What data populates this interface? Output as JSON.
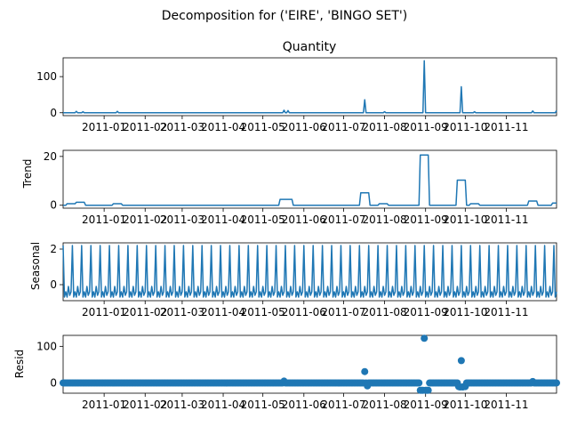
{
  "figure": {
    "title": "Decomposition for ('EIRE', 'BINGO SET')"
  },
  "colors": {
    "series": "#1f77b4",
    "axis": "#000000",
    "background": "#ffffff"
  },
  "chart_data": [
    {
      "type": "line",
      "panel": "observed",
      "title": "Quantity",
      "ylabel": "",
      "ylim": [
        -8,
        152
      ],
      "yticks": [
        0,
        100
      ],
      "xticklabels": [
        "2011-01",
        "2011-02",
        "2011-03",
        "2011-04",
        "2011-05",
        "2011-06",
        "2011-07",
        "2011-08",
        "2011-09",
        "2011-10",
        "2011-11"
      ],
      "x_range": [
        "2010-12-01",
        "2011-12-09"
      ],
      "baseline": 0,
      "spikes": [
        {
          "date": "2010-12-11",
          "value": 4
        },
        {
          "date": "2010-12-16",
          "value": 3
        },
        {
          "date": "2011-01-11",
          "value": 4
        },
        {
          "date": "2011-05-17",
          "value": 7
        },
        {
          "date": "2011-05-20",
          "value": 6
        },
        {
          "date": "2011-07-17",
          "value": 36
        },
        {
          "date": "2011-08-01",
          "value": 3
        },
        {
          "date": "2011-08-31",
          "value": 144
        },
        {
          "date": "2011-09-28",
          "value": 72
        },
        {
          "date": "2011-10-08",
          "value": 3
        },
        {
          "date": "2011-11-21",
          "value": 5
        },
        {
          "date": "2011-12-09",
          "value": 6
        }
      ]
    },
    {
      "type": "line",
      "panel": "trend",
      "title": "",
      "ylabel": "Trend",
      "ylim": [
        -1.2,
        22.5
      ],
      "yticks": [
        0,
        20
      ],
      "xticklabels": [
        "2011-01",
        "2011-02",
        "2011-03",
        "2011-04",
        "2011-05",
        "2011-06",
        "2011-07",
        "2011-08",
        "2011-09",
        "2011-10",
        "2011-11"
      ],
      "x_range": [
        "2010-12-01",
        "2011-12-09"
      ],
      "plateaus": [
        {
          "start": "2010-12-04",
          "end": "2010-12-10",
          "value": 0.6
        },
        {
          "start": "2010-12-11",
          "end": "2010-12-17",
          "value": 1.2
        },
        {
          "start": "2011-01-08",
          "end": "2011-01-14",
          "value": 0.6
        },
        {
          "start": "2011-05-14",
          "end": "2011-05-23",
          "value": 2.4
        },
        {
          "start": "2011-07-14",
          "end": "2011-07-20",
          "value": 5.1
        },
        {
          "start": "2011-07-28",
          "end": "2011-08-03",
          "value": 0.6
        },
        {
          "start": "2011-08-28",
          "end": "2011-09-03",
          "value": 20.6
        },
        {
          "start": "2011-09-25",
          "end": "2011-10-01",
          "value": 10.3
        },
        {
          "start": "2011-10-05",
          "end": "2011-10-11",
          "value": 0.6
        },
        {
          "start": "2011-11-18",
          "end": "2011-11-24",
          "value": 1.7
        },
        {
          "start": "2011-12-06",
          "end": "2011-12-09",
          "value": 0.9
        }
      ]
    },
    {
      "type": "line",
      "panel": "seasonal",
      "title": "",
      "ylabel": "Seasonal",
      "ylim": [
        -0.9,
        2.35
      ],
      "yticks": [
        0,
        2
      ],
      "xticklabels": [
        "2011-01",
        "2011-02",
        "2011-03",
        "2011-04",
        "2011-05",
        "2011-06",
        "2011-07",
        "2011-08",
        "2011-09",
        "2011-10",
        "2011-11"
      ],
      "x_range": [
        "2010-12-01",
        "2011-12-09"
      ],
      "period_days": 7,
      "weekly_pattern": [
        2.2,
        -0.7,
        -0.4,
        -0.7,
        -0.1,
        -0.6,
        -0.4
      ]
    },
    {
      "type": "scatter",
      "panel": "resid",
      "title": "",
      "ylabel": "Resid",
      "ylim": [
        -28,
        130
      ],
      "yticks": [
        0,
        100
      ],
      "xticklabels": [
        "2011-01",
        "2011-02",
        "2011-03",
        "2011-04",
        "2011-05",
        "2011-06",
        "2011-07",
        "2011-08",
        "2011-09",
        "2011-10",
        "2011-11"
      ],
      "x_range": [
        "2010-12-01",
        "2011-12-09"
      ],
      "outliers": [
        {
          "date": "2011-07-17",
          "value": 31
        },
        {
          "date": "2011-07-19",
          "value": -8
        },
        {
          "date": "2011-08-28",
          "value": -20
        },
        {
          "date": "2011-08-29",
          "value": -20
        },
        {
          "date": "2011-08-30",
          "value": -20
        },
        {
          "date": "2011-08-31",
          "value": 122
        },
        {
          "date": "2011-09-01",
          "value": -20
        },
        {
          "date": "2011-09-02",
          "value": -20
        },
        {
          "date": "2011-09-03",
          "value": -20
        },
        {
          "date": "2011-09-26",
          "value": -10
        },
        {
          "date": "2011-09-27",
          "value": -11
        },
        {
          "date": "2011-09-28",
          "value": 61
        },
        {
          "date": "2011-09-29",
          "value": -11
        },
        {
          "date": "2011-09-30",
          "value": -10
        },
        {
          "date": "2011-10-01",
          "value": -10
        },
        {
          "date": "2011-05-17",
          "value": 5
        },
        {
          "date": "2011-11-21",
          "value": 4
        }
      ],
      "other_points_value": 0
    }
  ]
}
